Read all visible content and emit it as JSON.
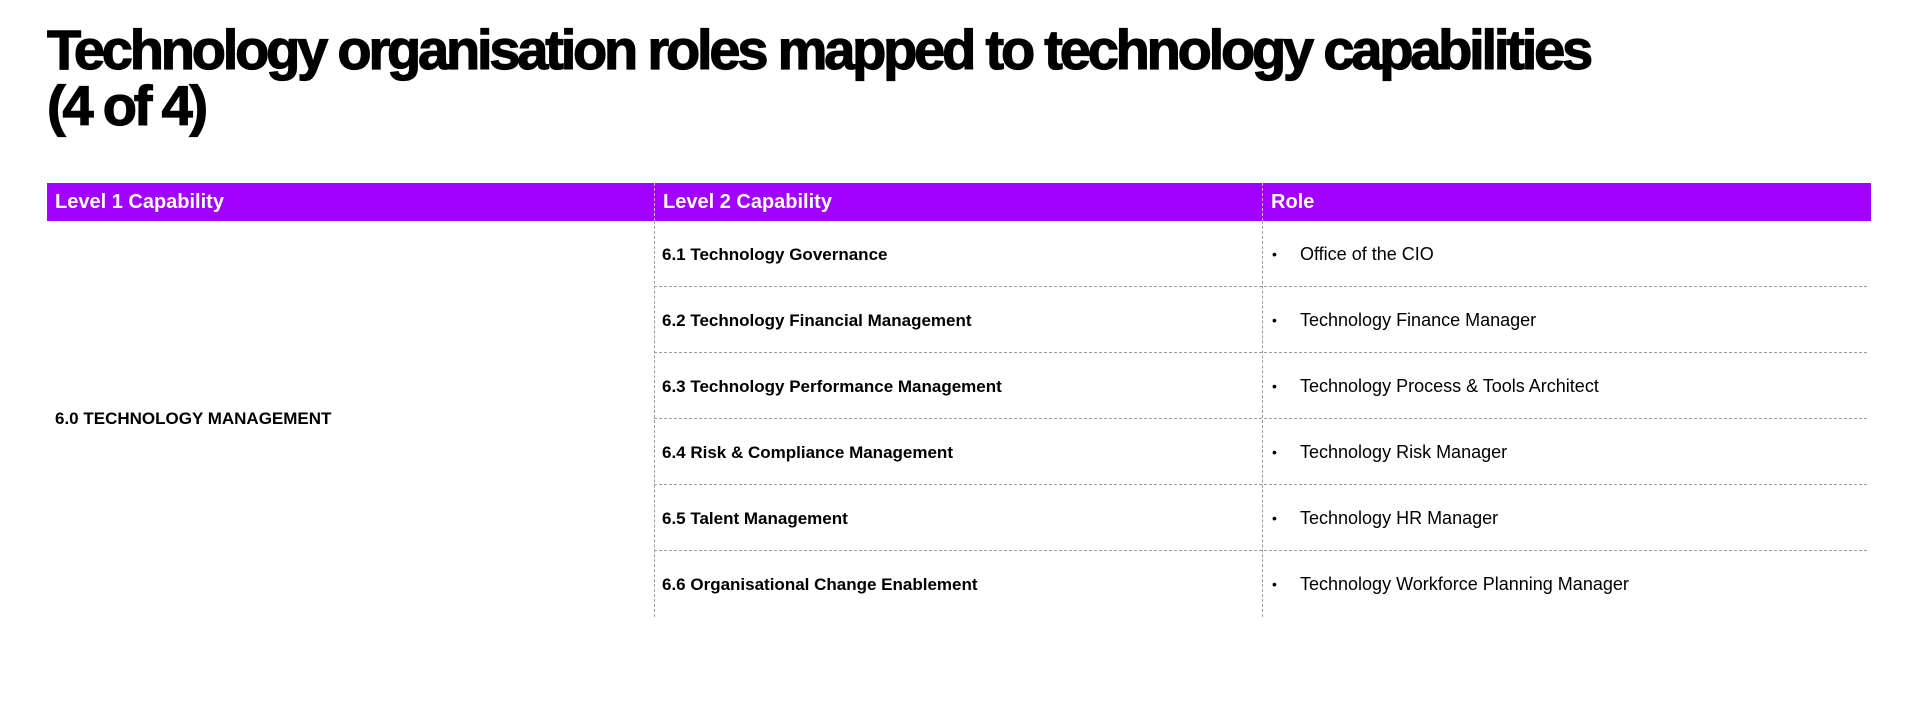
{
  "title": {
    "line1": "Technology organisation roles mapped to technology capabilities",
    "line2": "(4 of 4)"
  },
  "table": {
    "headers": [
      "Level 1 Capability",
      "Level 2 Capability",
      "Role"
    ],
    "level1": "6.0 TECHNOLOGY MANAGEMENT",
    "rows": [
      {
        "capability": "6.1 Technology Governance",
        "role": "Office of the CIO"
      },
      {
        "capability": "6.2 Technology Financial Management",
        "role": "Technology Finance Manager"
      },
      {
        "capability": "6.3 Technology Performance Management",
        "role": "Technology Process & Tools Architect"
      },
      {
        "capability": "6.4 Risk & Compliance Management",
        "role": "Technology Risk Manager"
      },
      {
        "capability": "6.5 Talent Management",
        "role": "Technology HR Manager"
      },
      {
        "capability": "6.6 Organisational Change Enablement",
        "role": "Technology Workforce Planning Manager"
      }
    ],
    "bullet": "•"
  },
  "colors": {
    "header_bg": "#a100ff",
    "header_text": "#ffffff",
    "divider": "#9e9e9e"
  }
}
